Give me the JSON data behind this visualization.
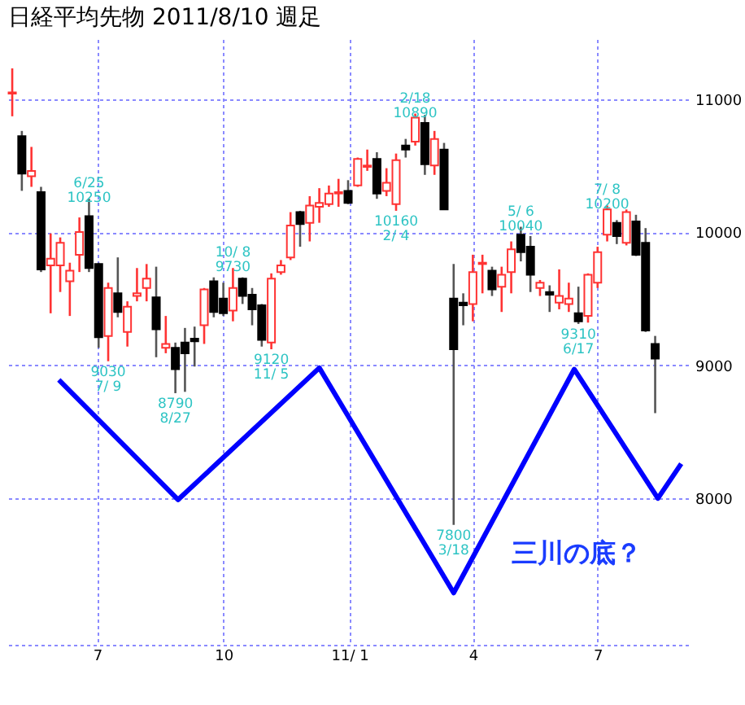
{
  "chart_data": {
    "type": "candlestick",
    "title": "日経平均先物  2011/8/10  週足",
    "x": [
      "2010-04-30",
      "2010-05-07",
      "2010-05-14",
      "2010-05-21",
      "2010-05-28",
      "2010-06-04",
      "2010-06-11",
      "2010-06-18",
      "2010-06-25",
      "2010-07-02",
      "2010-07-09",
      "2010-07-16",
      "2010-07-23",
      "2010-07-30",
      "2010-08-06",
      "2010-08-13",
      "2010-08-20",
      "2010-08-27",
      "2010-09-03",
      "2010-09-10",
      "2010-09-17",
      "2010-09-24",
      "2010-10-01",
      "2010-10-08",
      "2010-10-15",
      "2010-10-22",
      "2010-10-29",
      "2010-11-05",
      "2010-11-12",
      "2010-11-19",
      "2010-11-26",
      "2010-12-03",
      "2010-12-10",
      "2010-12-17",
      "2010-12-24",
      "2010-12-31",
      "2011-01-07",
      "2011-01-14",
      "2011-01-21",
      "2011-01-28",
      "2011-02-04",
      "2011-02-11",
      "2011-02-18",
      "2011-02-25",
      "2011-03-04",
      "2011-03-11",
      "2011-03-18",
      "2011-03-25",
      "2011-04-01",
      "2011-04-08",
      "2011-04-15",
      "2011-04-22",
      "2011-04-29",
      "2011-05-06",
      "2011-05-13",
      "2011-05-20",
      "2011-05-27",
      "2011-06-03",
      "2011-06-10",
      "2011-06-17",
      "2011-06-24",
      "2011-07-01",
      "2011-07-08",
      "2011-07-15",
      "2011-07-22",
      "2011-07-29",
      "2011-08-05",
      "2011-08-12"
    ],
    "ohlc": [
      [
        11040,
        11230,
        10870,
        11050
      ],
      [
        10720,
        10760,
        10310,
        10440
      ],
      [
        10420,
        10640,
        10340,
        10460
      ],
      [
        10300,
        10340,
        9700,
        9720
      ],
      [
        9750,
        9990,
        9390,
        9800
      ],
      [
        9750,
        9960,
        9550,
        9920
      ],
      [
        9630,
        9770,
        9370,
        9710
      ],
      [
        9830,
        10110,
        9700,
        10000
      ],
      [
        10120,
        10250,
        9700,
        9730
      ],
      [
        9760,
        9770,
        9130,
        9210
      ],
      [
        9220,
        9620,
        9030,
        9580
      ],
      [
        9540,
        9810,
        9360,
        9400
      ],
      [
        9250,
        9480,
        9140,
        9440
      ],
      [
        9520,
        9730,
        9480,
        9540
      ],
      [
        9580,
        9760,
        9480,
        9650
      ],
      [
        9510,
        9740,
        9060,
        9270
      ],
      [
        9130,
        9370,
        9090,
        9160
      ],
      [
        9130,
        9170,
        8790,
        8970
      ],
      [
        9170,
        9280,
        8800,
        9090
      ],
      [
        9200,
        9290,
        8990,
        9180
      ],
      [
        9300,
        9580,
        9160,
        9570
      ],
      [
        9630,
        9660,
        9360,
        9400
      ],
      [
        9500,
        9620,
        9370,
        9390
      ],
      [
        9410,
        9730,
        9330,
        9580
      ],
      [
        9650,
        9660,
        9460,
        9520
      ],
      [
        9530,
        9580,
        9300,
        9420
      ],
      [
        9450,
        9460,
        9140,
        9190
      ],
      [
        9170,
        9690,
        9120,
        9650
      ],
      [
        9700,
        9790,
        9680,
        9750
      ],
      [
        9810,
        10150,
        9790,
        10050
      ],
      [
        10150,
        10160,
        9890,
        10060
      ],
      [
        10070,
        10270,
        9930,
        10200
      ],
      [
        10190,
        10330,
        10070,
        10220
      ],
      [
        10210,
        10350,
        10190,
        10290
      ],
      [
        10290,
        10400,
        10190,
        10300
      ],
      [
        10310,
        10390,
        10210,
        10220
      ],
      [
        10350,
        10560,
        10340,
        10550
      ],
      [
        10490,
        10620,
        10460,
        10500
      ],
      [
        10550,
        10600,
        10250,
        10290
      ],
      [
        10310,
        10480,
        10270,
        10370
      ],
      [
        10210,
        10590,
        10160,
        10540
      ],
      [
        10650,
        10700,
        10560,
        10620
      ],
      [
        10680,
        10890,
        10650,
        10860
      ],
      [
        10820,
        10880,
        10430,
        10510
      ],
      [
        10500,
        10760,
        10430,
        10700
      ],
      [
        10620,
        10670,
        10170,
        10170
      ],
      [
        9500,
        9760,
        7800,
        9120
      ],
      [
        9470,
        9540,
        9300,
        9450
      ],
      [
        9460,
        9830,
        9330,
        9700
      ],
      [
        9760,
        9830,
        9540,
        9770
      ],
      [
        9710,
        9740,
        9520,
        9570
      ],
      [
        9590,
        9740,
        9400,
        9680
      ],
      [
        9700,
        9930,
        9540,
        9870
      ],
      [
        9980,
        10040,
        9780,
        9850
      ],
      [
        9890,
        9970,
        9550,
        9680
      ],
      [
        9580,
        9640,
        9520,
        9620
      ],
      [
        9550,
        9600,
        9400,
        9530
      ],
      [
        9470,
        9720,
        9420,
        9520
      ],
      [
        9460,
        9620,
        9400,
        9500
      ],
      [
        9390,
        9590,
        9310,
        9330
      ],
      [
        9370,
        9690,
        9320,
        9680
      ],
      [
        9620,
        9890,
        9580,
        9850
      ],
      [
        9980,
        10200,
        9930,
        10170
      ],
      [
        10070,
        10090,
        9910,
        9970
      ],
      [
        9920,
        10170,
        9900,
        10150
      ],
      [
        10080,
        10130,
        9820,
        9830
      ],
      [
        9920,
        10030,
        9250,
        9260
      ],
      [
        9160,
        9220,
        8640,
        9050
      ]
    ],
    "colors": [
      "#ff3333",
      "#000000",
      "#ff3333",
      "#000000",
      "#ff3333",
      "#ff3333",
      "#ff3333",
      "#ff3333",
      "#000000",
      "#000000",
      "#ff3333",
      "#000000",
      "#ff3333",
      "#ff3333",
      "#ff3333",
      "#000000",
      "#ff3333",
      "#000000",
      "#000000",
      "#000000",
      "#ff3333",
      "#000000",
      "#000000",
      "#ff3333",
      "#000000",
      "#000000",
      "#000000",
      "#ff3333",
      "#ff3333",
      "#ff3333",
      "#000000",
      "#ff3333",
      "#ff3333",
      "#ff3333",
      "#ff3333",
      "#000000",
      "#ff3333",
      "#ff3333",
      "#000000",
      "#ff3333",
      "#ff3333",
      "#000000",
      "#ff3333",
      "#000000",
      "#ff3333",
      "#000000",
      "#000000",
      "#000000",
      "#ff3333",
      "#ff3333",
      "#000000",
      "#ff3333",
      "#ff3333",
      "#000000",
      "#000000",
      "#ff3333",
      "#000000",
      "#ff3333",
      "#ff3333",
      "#000000",
      "#ff3333",
      "#ff3333",
      "#ff3333",
      "#000000",
      "#ff3333",
      "#000000",
      "#000000",
      "#000000"
    ],
    "series": [
      {
        "type": "line",
        "color": "#0000ff",
        "x": [
          "2010-06-03",
          "2010-08-29",
          "2010-12-10",
          "2011-03-18",
          "2011-06-14",
          "2011-08-14",
          "2011-08-31"
        ],
        "values": [
          8890,
          7990,
          8980,
          7290,
          8970,
          8000,
          8260
        ]
      }
    ],
    "xlim": [
      "2010-04-27",
      "2011-09-05"
    ],
    "xticks": [
      {
        "value": "2010-07-01",
        "label": "7"
      },
      {
        "value": "2010-10-01",
        "label": "10"
      },
      {
        "value": "2011-01-01",
        "label": "11/ 1"
      },
      {
        "value": "2011-04-01",
        "label": "4"
      },
      {
        "value": "2011-07-01",
        "label": "7"
      }
    ],
    "ylim": [
      6900,
      11450
    ],
    "yticks": [
      8000,
      9000,
      10000,
      11000
    ],
    "grid": true,
    "annotations": [
      {
        "text": "6/25\n10250",
        "x": "2010-06-25",
        "y": 10250
      },
      {
        "text": "9030\n7/ 9",
        "x": "2010-07-09",
        "y": 9030
      },
      {
        "text": "8790\n8/27",
        "x": "2010-08-27",
        "y": 8790
      },
      {
        "text": "10/ 8\n9730",
        "x": "2010-10-08",
        "y": 9730
      },
      {
        "text": "9120\n11/ 5",
        "x": "2010-11-05",
        "y": 9120
      },
      {
        "text": "10160\n2/ 4",
        "x": "2011-02-04",
        "y": 10160
      },
      {
        "text": "2/18\n10890",
        "x": "2011-02-18",
        "y": 10890
      },
      {
        "text": "7800\n3/18",
        "x": "2011-03-18",
        "y": 7800
      },
      {
        "text": "5/ 6\n10040",
        "x": "2011-05-06",
        "y": 10040
      },
      {
        "text": "9310\n6/17",
        "x": "2011-06-17",
        "y": 9310
      },
      {
        "text": "7/ 8\n10200",
        "x": "2011-07-08",
        "y": 10200
      },
      "三川の底？"
    ]
  }
}
